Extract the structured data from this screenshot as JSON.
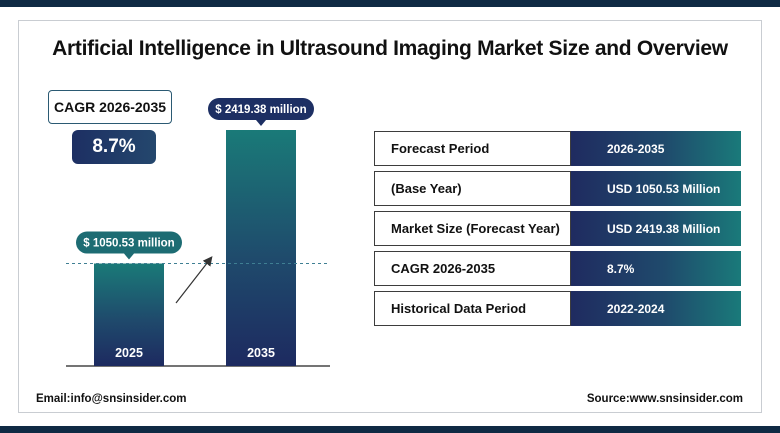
{
  "title": "Artificial Intelligence in Ultrasound Imaging Market Size and Overview",
  "cagr": {
    "label": "CAGR 2026-2035",
    "value": "8.7%"
  },
  "chart_data": {
    "type": "bar",
    "categories": [
      "2025",
      "2035"
    ],
    "values": [
      1050.53,
      2419.38
    ],
    "data_labels": [
      "$ 1050.53 million",
      "$ 2419.38 million"
    ],
    "colors": [
      "#1d6c73",
      "#1d2f63"
    ]
  },
  "table": {
    "rows": [
      {
        "label": "Forecast Period",
        "value": "2026-2035"
      },
      {
        "label": "(Base Year)",
        "value": "USD  1050.53 Million"
      },
      {
        "label": "Market Size (Forecast Year)",
        "value": "USD 2419.38 Million"
      },
      {
        "label": "CAGR 2026-2035",
        "value": "8.7%"
      },
      {
        "label": "Historical Data Period",
        "value": "2022-2024"
      }
    ]
  },
  "footer": {
    "email": "Email:info@snsinsider.com",
    "source": "Source:www.snsinsider.com"
  }
}
